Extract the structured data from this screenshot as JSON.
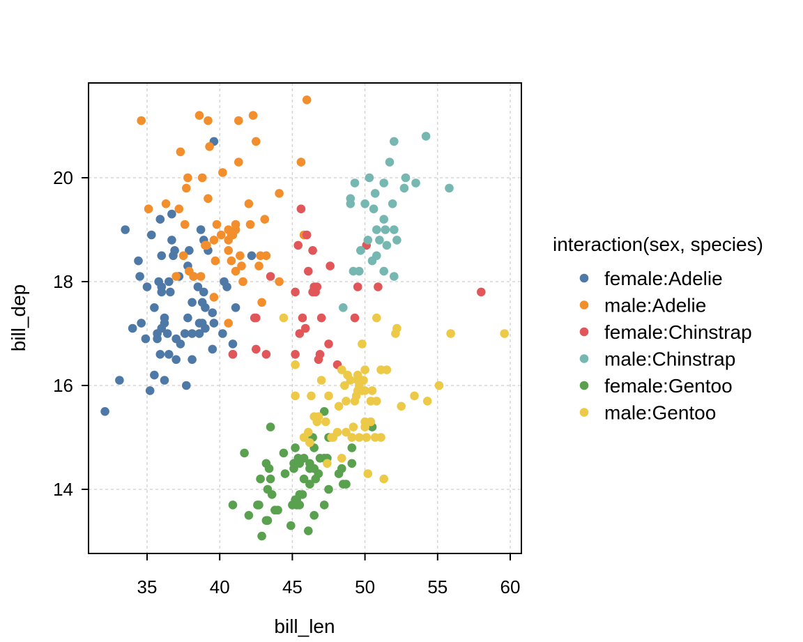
{
  "chart_data": {
    "type": "scatter",
    "title": "",
    "xlabel": "bill_len",
    "ylabel": "bill_dep",
    "xlim": [
      31,
      61
    ],
    "ylim": [
      12.8,
      21.8
    ],
    "xticks": [
      35,
      40,
      45,
      50,
      55,
      60
    ],
    "yticks": [
      14,
      16,
      18,
      20
    ],
    "grid": true,
    "legend": {
      "title": "interaction(sex, species)",
      "placement": "right"
    },
    "series": [
      {
        "name": "female:Adelie",
        "color": "#4e79a7",
        "points": [
          [
            32.1,
            15.5
          ],
          [
            33.1,
            16.1
          ],
          [
            33.5,
            19.0
          ],
          [
            34.0,
            17.1
          ],
          [
            34.4,
            18.4
          ],
          [
            34.5,
            18.1
          ],
          [
            34.6,
            17.2
          ],
          [
            34.9,
            16.9
          ],
          [
            35.0,
            17.9
          ],
          [
            35.2,
            15.9
          ],
          [
            35.3,
            18.9
          ],
          [
            35.5,
            16.2
          ],
          [
            35.5,
            17.5
          ],
          [
            35.7,
            16.9
          ],
          [
            35.7,
            17.0
          ],
          [
            35.8,
            18.0
          ],
          [
            35.9,
            16.6
          ],
          [
            35.9,
            19.2
          ],
          [
            36.0,
            17.1
          ],
          [
            36.0,
            17.8
          ],
          [
            36.0,
            18.5
          ],
          [
            36.0,
            17.9
          ],
          [
            36.2,
            16.1
          ],
          [
            36.2,
            17.2
          ],
          [
            36.2,
            17.3
          ],
          [
            36.4,
            17.0
          ],
          [
            36.5,
            16.6
          ],
          [
            36.5,
            18.0
          ],
          [
            36.6,
            17.8
          ],
          [
            36.7,
            18.8
          ],
          [
            36.7,
            19.3
          ],
          [
            36.8,
            18.5
          ],
          [
            36.9,
            18.6
          ],
          [
            37.0,
            16.5
          ],
          [
            37.0,
            16.9
          ],
          [
            37.2,
            18.1
          ],
          [
            37.3,
            16.8
          ],
          [
            37.6,
            17.0
          ],
          [
            37.7,
            16.0
          ],
          [
            37.8,
            17.3
          ],
          [
            37.8,
            18.3
          ],
          [
            37.9,
            18.6
          ],
          [
            38.1,
            16.5
          ],
          [
            38.1,
            17.0
          ],
          [
            38.1,
            17.6
          ],
          [
            38.2,
            18.1
          ],
          [
            38.5,
            17.9
          ],
          [
            38.6,
            17.0
          ],
          [
            38.6,
            17.2
          ],
          [
            38.7,
            19.0
          ],
          [
            38.8,
            17.2
          ],
          [
            38.8,
            17.6
          ],
          [
            38.9,
            17.8
          ],
          [
            38.9,
            18.8
          ],
          [
            39.0,
            17.1
          ],
          [
            39.0,
            17.5
          ],
          [
            39.2,
            18.6
          ],
          [
            39.5,
            16.7
          ],
          [
            39.5,
            17.4
          ],
          [
            39.6,
            17.2
          ],
          [
            39.6,
            20.7
          ],
          [
            40.2,
            17.0
          ],
          [
            40.3,
            18.0
          ],
          [
            40.5,
            17.9
          ],
          [
            40.9,
            16.6
          ],
          [
            40.9,
            16.8
          ],
          [
            41.1,
            17.5
          ],
          [
            42.2,
            18.5
          ]
        ]
      },
      {
        "name": "male:Adelie",
        "color": "#f28e2b",
        "points": [
          [
            34.6,
            21.1
          ],
          [
            35.1,
            19.4
          ],
          [
            36.3,
            19.5
          ],
          [
            37.0,
            18.1
          ],
          [
            37.2,
            19.4
          ],
          [
            37.3,
            20.5
          ],
          [
            37.5,
            18.5
          ],
          [
            37.6,
            19.1
          ],
          [
            37.7,
            19.8
          ],
          [
            37.8,
            20.0
          ],
          [
            37.9,
            18.2
          ],
          [
            38.2,
            18.1
          ],
          [
            38.6,
            21.2
          ],
          [
            38.7,
            18.1
          ],
          [
            38.8,
            20.0
          ],
          [
            39.0,
            18.7
          ],
          [
            39.1,
            18.7
          ],
          [
            39.2,
            19.6
          ],
          [
            39.2,
            21.1
          ],
          [
            39.3,
            20.6
          ],
          [
            39.6,
            17.7
          ],
          [
            39.6,
            18.8
          ],
          [
            39.7,
            18.4
          ],
          [
            39.8,
            19.1
          ],
          [
            40.1,
            18.9
          ],
          [
            40.2,
            20.1
          ],
          [
            40.6,
            17.2
          ],
          [
            40.6,
            18.6
          ],
          [
            40.6,
            18.8
          ],
          [
            40.6,
            19.0
          ],
          [
            40.8,
            18.4
          ],
          [
            40.8,
            18.9
          ],
          [
            40.9,
            18.9
          ],
          [
            41.1,
            18.2
          ],
          [
            41.1,
            19.0
          ],
          [
            41.1,
            19.1
          ],
          [
            41.3,
            20.3
          ],
          [
            41.3,
            21.1
          ],
          [
            41.4,
            18.5
          ],
          [
            41.5,
            18.3
          ],
          [
            41.6,
            18.0
          ],
          [
            42.0,
            19.5
          ],
          [
            42.1,
            19.1
          ],
          [
            42.3,
            21.2
          ],
          [
            42.5,
            20.7
          ],
          [
            42.7,
            18.3
          ],
          [
            42.8,
            18.5
          ],
          [
            42.9,
            17.6
          ],
          [
            43.1,
            19.2
          ],
          [
            43.2,
            18.5
          ],
          [
            44.1,
            18.0
          ],
          [
            44.1,
            19.7
          ],
          [
            45.6,
            20.3
          ],
          [
            45.8,
            18.9
          ],
          [
            46.0,
            21.5
          ]
        ]
      },
      {
        "name": "female:Chinstrap",
        "color": "#e15759",
        "points": [
          [
            40.9,
            16.6
          ],
          [
            42.4,
            17.3
          ],
          [
            42.5,
            16.7
          ],
          [
            42.5,
            17.3
          ],
          [
            43.2,
            16.6
          ],
          [
            43.5,
            18.1
          ],
          [
            45.2,
            16.6
          ],
          [
            45.2,
            17.8
          ],
          [
            45.4,
            18.7
          ],
          [
            45.5,
            17.0
          ],
          [
            45.6,
            19.4
          ],
          [
            45.7,
            17.3
          ],
          [
            45.9,
            17.1
          ],
          [
            46.0,
            18.9
          ],
          [
            46.1,
            18.2
          ],
          [
            46.4,
            17.8
          ],
          [
            46.4,
            18.6
          ],
          [
            46.5,
            17.9
          ],
          [
            46.6,
            17.8
          ],
          [
            46.7,
            17.9
          ],
          [
            46.8,
            16.5
          ],
          [
            46.9,
            16.6
          ],
          [
            47.0,
            17.3
          ],
          [
            47.5,
            16.8
          ],
          [
            47.6,
            18.3
          ],
          [
            48.1,
            16.4
          ],
          [
            49.3,
            17.3
          ],
          [
            49.5,
            17.9
          ],
          [
            50.1,
            18.7
          ],
          [
            50.9,
            17.9
          ],
          [
            58.0,
            17.8
          ]
        ]
      },
      {
        "name": "male:Chinstrap",
        "color": "#76b7b2",
        "points": [
          [
            48.5,
            17.5
          ],
          [
            49.0,
            19.5
          ],
          [
            49.0,
            19.6
          ],
          [
            49.2,
            18.2
          ],
          [
            49.3,
            19.9
          ],
          [
            49.6,
            18.2
          ],
          [
            49.7,
            18.6
          ],
          [
            50.0,
            19.5
          ],
          [
            50.2,
            18.8
          ],
          [
            50.3,
            20.0
          ],
          [
            50.5,
            18.4
          ],
          [
            50.6,
            19.4
          ],
          [
            50.7,
            19.7
          ],
          [
            50.8,
            18.5
          ],
          [
            50.8,
            19.0
          ],
          [
            51.0,
            18.8
          ],
          [
            51.3,
            18.2
          ],
          [
            51.3,
            19.2
          ],
          [
            51.3,
            19.9
          ],
          [
            51.4,
            19.0
          ],
          [
            51.5,
            18.7
          ],
          [
            51.7,
            20.3
          ],
          [
            51.9,
            19.5
          ],
          [
            52.0,
            18.1
          ],
          [
            52.0,
            19.0
          ],
          [
            52.0,
            20.7
          ],
          [
            52.2,
            18.8
          ],
          [
            52.7,
            19.8
          ],
          [
            52.8,
            20.0
          ],
          [
            53.5,
            19.9
          ],
          [
            54.2,
            20.8
          ],
          [
            55.8,
            19.8
          ]
        ]
      },
      {
        "name": "female:Gentoo",
        "color": "#59a14f",
        "points": [
          [
            40.9,
            13.7
          ],
          [
            41.7,
            14.7
          ],
          [
            42.0,
            13.5
          ],
          [
            42.6,
            13.7
          ],
          [
            42.7,
            13.7
          ],
          [
            42.8,
            14.2
          ],
          [
            42.9,
            13.1
          ],
          [
            43.2,
            13.4
          ],
          [
            43.2,
            14.5
          ],
          [
            43.3,
            13.4
          ],
          [
            43.3,
            14.0
          ],
          [
            43.4,
            14.4
          ],
          [
            43.5,
            14.2
          ],
          [
            43.5,
            15.2
          ],
          [
            43.6,
            13.9
          ],
          [
            43.8,
            13.6
          ],
          [
            44.0,
            13.6
          ],
          [
            44.4,
            14.7
          ],
          [
            44.5,
            14.3
          ],
          [
            44.9,
            13.3
          ],
          [
            45.0,
            13.7
          ],
          [
            45.1,
            14.4
          ],
          [
            45.1,
            14.5
          ],
          [
            45.2,
            13.8
          ],
          [
            45.2,
            14.8
          ],
          [
            45.3,
            13.7
          ],
          [
            45.3,
            13.8
          ],
          [
            45.4,
            14.6
          ],
          [
            45.5,
            13.7
          ],
          [
            45.5,
            13.9
          ],
          [
            45.5,
            14.5
          ],
          [
            45.7,
            13.9
          ],
          [
            45.8,
            14.2
          ],
          [
            45.8,
            14.6
          ],
          [
            46.1,
            13.2
          ],
          [
            46.2,
            14.1
          ],
          [
            46.2,
            14.4
          ],
          [
            46.2,
            14.5
          ],
          [
            46.4,
            15.0
          ],
          [
            46.5,
            13.5
          ],
          [
            46.5,
            14.4
          ],
          [
            46.5,
            14.8
          ],
          [
            46.6,
            14.2
          ],
          [
            46.8,
            14.3
          ],
          [
            46.9,
            14.6
          ],
          [
            47.2,
            13.7
          ],
          [
            47.2,
            14.6
          ],
          [
            47.2,
            15.5
          ],
          [
            47.4,
            14.6
          ],
          [
            47.5,
            14.0
          ],
          [
            47.5,
            15.0
          ],
          [
            48.2,
            14.3
          ],
          [
            48.4,
            14.4
          ],
          [
            48.5,
            14.1
          ],
          [
            48.7,
            14.1
          ],
          [
            49.1,
            14.5
          ],
          [
            49.1,
            14.8
          ],
          [
            50.5,
            15.2
          ]
        ]
      },
      {
        "name": "male:Gentoo",
        "color": "#edc948",
        "points": [
          [
            44.4,
            17.3
          ],
          [
            45.2,
            15.8
          ],
          [
            45.2,
            16.4
          ],
          [
            45.8,
            15.0
          ],
          [
            46.1,
            15.1
          ],
          [
            46.2,
            14.9
          ],
          [
            46.3,
            15.8
          ],
          [
            46.5,
            15.4
          ],
          [
            46.7,
            15.3
          ],
          [
            46.8,
            15.4
          ],
          [
            47.0,
            16.1
          ],
          [
            47.3,
            15.3
          ],
          [
            47.4,
            14.5
          ],
          [
            47.5,
            15.8
          ],
          [
            47.7,
            15.0
          ],
          [
            47.8,
            15.0
          ],
          [
            48.1,
            15.1
          ],
          [
            48.2,
            15.6
          ],
          [
            48.4,
            14.6
          ],
          [
            48.4,
            16.3
          ],
          [
            48.6,
            16.0
          ],
          [
            48.7,
            15.1
          ],
          [
            48.7,
            15.7
          ],
          [
            48.8,
            16.2
          ],
          [
            49.0,
            16.1
          ],
          [
            49.1,
            15.0
          ],
          [
            49.2,
            15.2
          ],
          [
            49.3,
            15.7
          ],
          [
            49.4,
            15.8
          ],
          [
            49.5,
            15.9
          ],
          [
            49.5,
            16.1
          ],
          [
            49.5,
            16.2
          ],
          [
            49.6,
            15.0
          ],
          [
            49.6,
            16.0
          ],
          [
            49.8,
            15.9
          ],
          [
            49.8,
            16.8
          ],
          [
            49.9,
            16.1
          ],
          [
            50.0,
            15.2
          ],
          [
            50.0,
            15.3
          ],
          [
            50.0,
            15.9
          ],
          [
            50.0,
            16.3
          ],
          [
            50.1,
            15.0
          ],
          [
            50.2,
            14.3
          ],
          [
            50.4,
            15.3
          ],
          [
            50.4,
            15.7
          ],
          [
            50.5,
            15.9
          ],
          [
            50.7,
            15.0
          ],
          [
            50.8,
            15.7
          ],
          [
            50.8,
            17.3
          ],
          [
            51.1,
            15.0
          ],
          [
            51.1,
            16.3
          ],
          [
            51.3,
            14.2
          ],
          [
            51.5,
            16.3
          ],
          [
            52.1,
            17.0
          ],
          [
            52.2,
            17.1
          ],
          [
            52.5,
            15.6
          ],
          [
            53.4,
            15.8
          ],
          [
            54.3,
            15.7
          ],
          [
            55.1,
            16.0
          ],
          [
            55.9,
            17.0
          ],
          [
            59.6,
            17.0
          ]
        ]
      }
    ]
  }
}
